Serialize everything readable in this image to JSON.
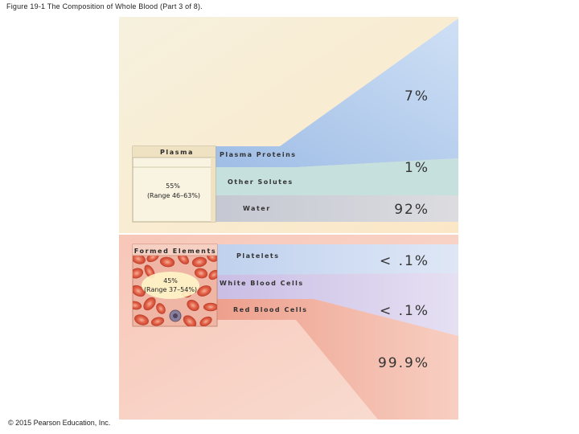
{
  "caption": "Figure 19-1 The Composition of Whole Blood (Part 3 of 8).",
  "copyright": "© 2015 Pearson Education, Inc.",
  "plasma": {
    "label": "Plasma",
    "percent": "55%",
    "range": "(Range 46–63%)",
    "components": {
      "proteins": {
        "label": "Plasma Proteins",
        "value": "7%"
      },
      "solutes": {
        "label": "Other Solutes",
        "value": "1%"
      },
      "water": {
        "label": "Water",
        "value": "92%"
      }
    }
  },
  "formed": {
    "label": "Formed Elements",
    "percent": "45%",
    "range": "(Range 37–54%)",
    "components": {
      "platelets": {
        "label": "Platelets",
        "value": "< .1%"
      },
      "wbc": {
        "label": "White Blood Cells",
        "value": "< .1%"
      },
      "rbc": {
        "label": "Red Blood Cells",
        "value": "99.9%"
      }
    }
  },
  "colors": {
    "proteins_band": "#b9d0ee",
    "solutes_band": "#c6e0dd",
    "water_band": "#d3d3d6",
    "platelets_band": "#cfdcf2",
    "wbc_band": "#d8d0ea",
    "rbc_band": "#f2b9a8",
    "plasma_bg": "#fbeed2",
    "formed_bg": "#f8d0c3"
  }
}
